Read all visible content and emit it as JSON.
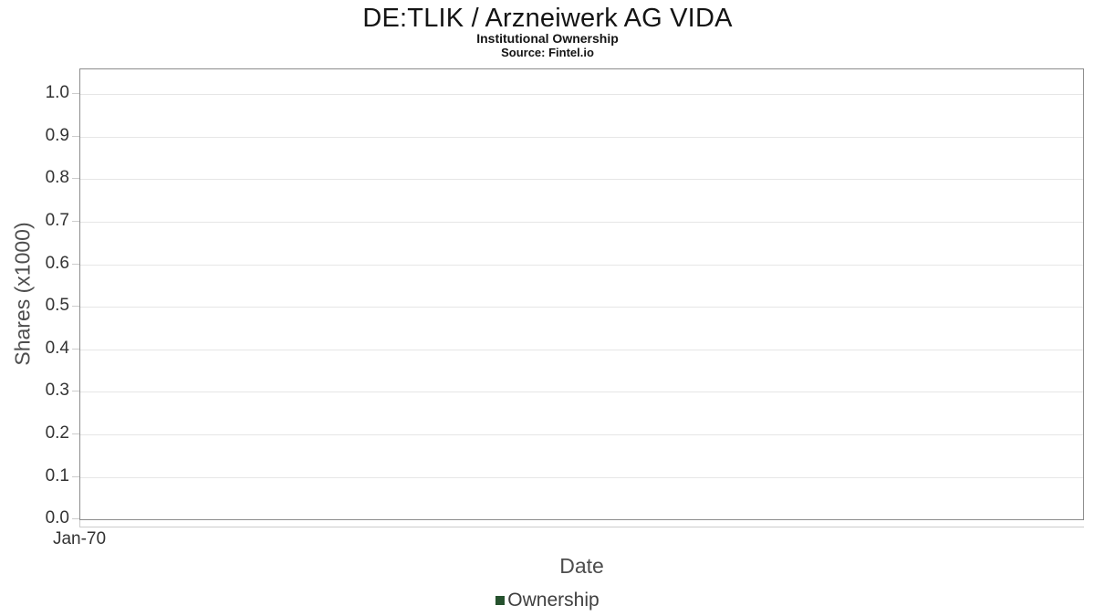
{
  "header": {
    "title": "DE:TLIK / Arzneiwerk AG VIDA",
    "subtitle": "Institutional Ownership",
    "source": "Source: Fintel.io"
  },
  "chart_data": {
    "type": "line",
    "title": "DE:TLIK / Arzneiwerk AG VIDA",
    "subtitle": "Institutional Ownership",
    "source": "Source: Fintel.io",
    "xlabel": "Date",
    "ylabel": "Shares (x1000)",
    "x_tick_labels": [
      "Jan-70"
    ],
    "y_tick_labels": [
      "1.0",
      "0.9",
      "0.8",
      "0.7",
      "0.6",
      "0.5",
      "0.4",
      "0.3",
      "0.2",
      "0.1",
      "0.0"
    ],
    "ylim": [
      0.0,
      1.06
    ],
    "xlim_labels": [
      "Jan-70"
    ],
    "grid": "horizontal-only",
    "legend_position": "bottom-center",
    "legend": [
      {
        "label": "Ownership",
        "color": "#26522e"
      }
    ],
    "series": [
      {
        "name": "Ownership",
        "x": [],
        "values": []
      }
    ],
    "plot_is_empty": true
  },
  "colors": {
    "background": "#ffffff",
    "plot_border": "#8c8c8c",
    "gridline": "#e6e6e6",
    "tick_mark": "#cccccc",
    "tick_label": "#333333",
    "axis_title": "#4d4d4d",
    "title_text": "#141414",
    "legend_text": "#404040",
    "series_ownership": "#26522e"
  }
}
